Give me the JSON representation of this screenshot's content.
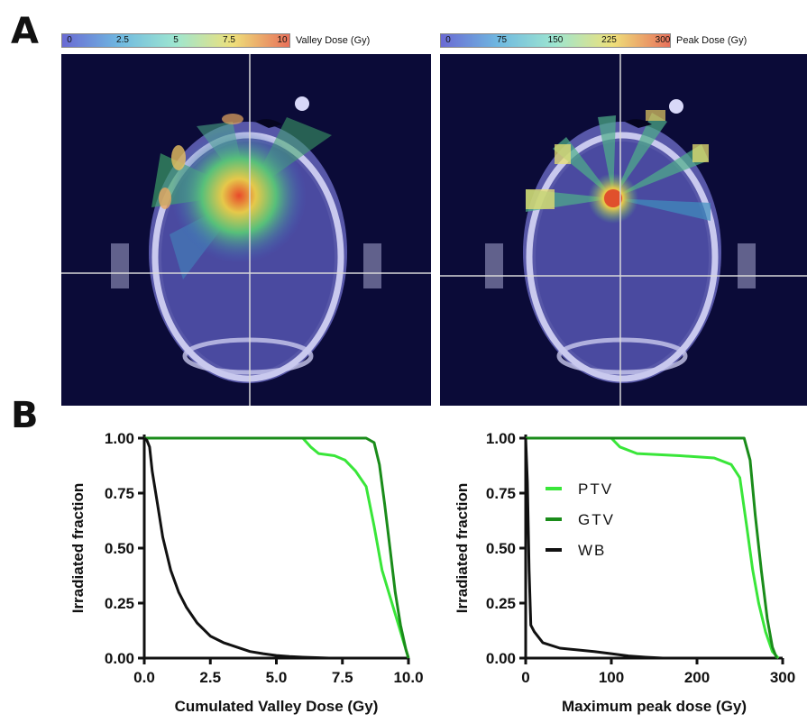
{
  "figure": {
    "panel_a_label": "A",
    "panel_b_label": "B"
  },
  "colorbars": [
    {
      "ticks": [
        "0",
        "2.5",
        "5",
        "7.5",
        "10"
      ],
      "title": "Valley Dose (Gy)",
      "colors": [
        "#6a6ad4",
        "#6fb8e0",
        "#9ee6d0",
        "#eee07a",
        "#e8705a"
      ]
    },
    {
      "ticks": [
        "0",
        "75",
        "150",
        "225",
        "300"
      ],
      "title": "Peak Dose (Gy)",
      "colors": [
        "#6a6ad4",
        "#6fb8e0",
        "#9ee6d0",
        "#eee07a",
        "#e8705a"
      ]
    }
  ],
  "images": [
    {
      "description_icon": "ct-valley-dose-map"
    },
    {
      "description_icon": "ct-peak-dose-map"
    }
  ],
  "colors": {
    "ptv": "#39e639",
    "gtv": "#1a8c1a",
    "wb": "#111111",
    "scan_bg": "#0b0b38"
  },
  "chart_data": [
    {
      "type": "line",
      "xlabel": "Cumulated Valley Dose (Gy)",
      "ylabel": "Irradiated fraction",
      "xlim": [
        0,
        10
      ],
      "ylim": [
        0,
        1
      ],
      "xticks": [
        "0.0",
        "2.5",
        "5.0",
        "7.5",
        "10.0"
      ],
      "yticks": [
        "0.00",
        "0.25",
        "0.50",
        "0.75",
        "1.00"
      ],
      "series": [
        {
          "key": "ptv",
          "x": [
            0,
            6.0,
            6.3,
            6.6,
            7.2,
            7.6,
            8.0,
            8.4,
            8.7,
            9.0,
            9.3,
            9.6,
            9.8,
            10.0
          ],
          "y": [
            1.0,
            1.0,
            0.96,
            0.93,
            0.92,
            0.9,
            0.85,
            0.78,
            0.6,
            0.4,
            0.28,
            0.16,
            0.08,
            0.0
          ]
        },
        {
          "key": "gtv",
          "x": [
            0,
            8.4,
            8.7,
            8.9,
            9.1,
            9.3,
            9.5,
            9.7,
            9.9,
            10.0
          ],
          "y": [
            1.0,
            1.0,
            0.98,
            0.88,
            0.7,
            0.5,
            0.3,
            0.15,
            0.04,
            0.0
          ]
        },
        {
          "key": "wb",
          "x": [
            0,
            0.1,
            0.2,
            0.3,
            0.5,
            0.7,
            1.0,
            1.3,
            1.6,
            2.0,
            2.5,
            3.0,
            3.5,
            4.0,
            4.5,
            5.0,
            5.5,
            6.0,
            7.0
          ],
          "y": [
            1.0,
            0.99,
            0.96,
            0.85,
            0.7,
            0.55,
            0.4,
            0.3,
            0.23,
            0.16,
            0.1,
            0.07,
            0.05,
            0.03,
            0.02,
            0.012,
            0.007,
            0.004,
            0.0
          ]
        }
      ]
    },
    {
      "type": "line",
      "xlabel": "Maximum peak dose (Gy)",
      "ylabel": "Irradiated fraction",
      "xlim": [
        0,
        300
      ],
      "ylim": [
        0,
        1
      ],
      "xticks": [
        "0",
        "100",
        "200",
        "300"
      ],
      "yticks": [
        "0.00",
        "0.25",
        "0.50",
        "0.75",
        "1.00"
      ],
      "legend": {
        "position": "upper-left",
        "entries": [
          "PTV",
          "GTV",
          "WB"
        ]
      },
      "series": [
        {
          "key": "ptv",
          "name": "PTV",
          "x": [
            0,
            100,
            110,
            130,
            180,
            220,
            240,
            250,
            258,
            265,
            272,
            280,
            288,
            295
          ],
          "y": [
            1.0,
            1.0,
            0.96,
            0.93,
            0.92,
            0.91,
            0.88,
            0.82,
            0.6,
            0.4,
            0.25,
            0.12,
            0.03,
            0.0
          ]
        },
        {
          "key": "gtv",
          "name": "GTV",
          "x": [
            0,
            255,
            262,
            268,
            275,
            282,
            288,
            293
          ],
          "y": [
            1.0,
            1.0,
            0.9,
            0.65,
            0.4,
            0.18,
            0.05,
            0.0
          ]
        },
        {
          "key": "wb",
          "name": "WB",
          "x": [
            0,
            2,
            4,
            6,
            10,
            20,
            40,
            80,
            100,
            120,
            140,
            160
          ],
          "y": [
            1.0,
            0.8,
            0.4,
            0.15,
            0.12,
            0.07,
            0.045,
            0.03,
            0.02,
            0.01,
            0.004,
            0.0
          ]
        }
      ]
    }
  ]
}
